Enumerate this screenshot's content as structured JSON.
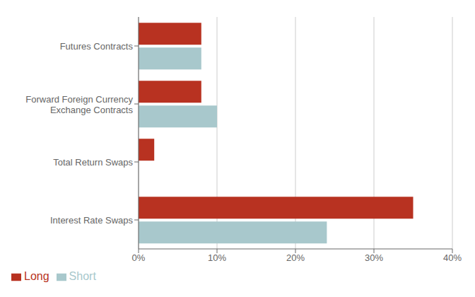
{
  "chart_data": {
    "type": "bar",
    "orientation": "horizontal",
    "categories": [
      "Interest Rate Swaps",
      "Total Return Swaps",
      "Forward Foreign Currency\nExchange Contracts",
      "Futures Contracts"
    ],
    "series": [
      {
        "name": "Long",
        "color": "#b83221",
        "values": [
          35,
          2,
          8,
          8
        ]
      },
      {
        "name": "Short",
        "color": "#a8c8cc",
        "values": [
          24,
          0,
          10,
          8
        ]
      }
    ],
    "xlim": [
      0,
      40
    ],
    "xticks": [
      {
        "value": 0,
        "label": "0%"
      },
      {
        "value": 10,
        "label": "10%"
      },
      {
        "value": 20,
        "label": "20%"
      },
      {
        "value": 30,
        "label": "30%"
      },
      {
        "value": 40,
        "label": "40%"
      }
    ],
    "grid": true,
    "legend": "lower left"
  }
}
